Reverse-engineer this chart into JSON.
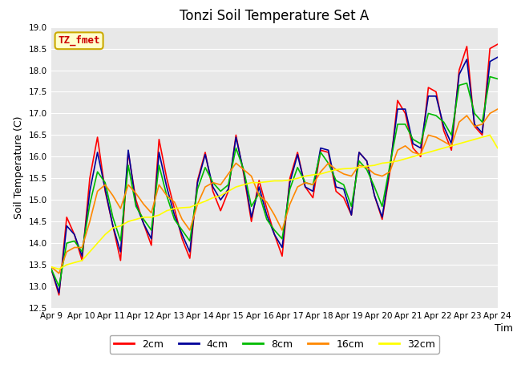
{
  "title": "Tonzi Soil Temperature Set A",
  "ylabel": "Soil Temperature (C)",
  "xlabel": "Time",
  "ylim": [
    12.5,
    19.0
  ],
  "yticks": [
    12.5,
    13.0,
    13.5,
    14.0,
    14.5,
    15.0,
    15.5,
    16.0,
    16.5,
    17.0,
    17.5,
    18.0,
    18.5,
    19.0
  ],
  "xtick_labels": [
    "Apr 9",
    "Apr 10",
    "Apr 11",
    "Apr 12",
    "Apr 13",
    "Apr 14",
    "Apr 15",
    "Apr 16",
    "Apr 17",
    "Apr 18",
    "Apr 19",
    "Apr 20",
    "Apr 21",
    "Apr 22",
    "Apr 23",
    "Apr 24"
  ],
  "legend_label": "TZ_fmet",
  "series_keys": [
    "2cm",
    "4cm",
    "8cm",
    "16cm",
    "32cm"
  ],
  "series_colors": [
    "#ff0000",
    "#000099",
    "#00bb00",
    "#ff8800",
    "#ffff00"
  ],
  "series_labels": [
    "2cm",
    "4cm",
    "8cm",
    "16cm",
    "32cm"
  ],
  "series_2cm": [
    13.4,
    12.8,
    14.6,
    14.2,
    13.6,
    15.5,
    16.45,
    15.2,
    14.4,
    13.6,
    16.1,
    15.0,
    14.45,
    13.95,
    16.4,
    15.5,
    14.8,
    14.1,
    13.65,
    15.45,
    16.1,
    15.2,
    14.75,
    15.2,
    16.5,
    15.6,
    14.5,
    15.45,
    14.8,
    14.2,
    13.7,
    15.5,
    16.1,
    15.3,
    15.05,
    16.15,
    16.1,
    15.2,
    15.05,
    14.65,
    16.1,
    15.9,
    15.1,
    14.55,
    15.65,
    17.3,
    17.0,
    16.2,
    16.0,
    17.6,
    17.5,
    16.6,
    16.15,
    18.0,
    18.55,
    16.7,
    16.5,
    18.5,
    18.6
  ],
  "series_4cm": [
    13.4,
    12.85,
    14.4,
    14.2,
    13.7,
    15.2,
    16.1,
    15.25,
    14.4,
    13.8,
    16.15,
    14.9,
    14.45,
    14.1,
    16.1,
    15.3,
    14.65,
    14.2,
    13.8,
    15.4,
    16.05,
    15.3,
    15.0,
    15.25,
    16.45,
    15.65,
    14.6,
    15.3,
    14.65,
    14.2,
    13.9,
    15.4,
    16.05,
    15.3,
    15.2,
    16.2,
    16.15,
    15.3,
    15.25,
    14.65,
    16.1,
    15.9,
    15.1,
    14.6,
    15.75,
    17.1,
    17.1,
    16.3,
    16.2,
    17.4,
    17.4,
    16.7,
    16.3,
    17.9,
    18.25,
    16.75,
    16.55,
    18.2,
    18.3
  ],
  "series_8cm": [
    13.4,
    13.0,
    14.0,
    14.05,
    13.8,
    14.9,
    15.65,
    15.4,
    14.6,
    14.05,
    15.8,
    14.85,
    14.55,
    14.3,
    15.8,
    15.1,
    14.55,
    14.3,
    14.05,
    15.25,
    15.75,
    15.4,
    15.2,
    15.35,
    16.2,
    15.7,
    14.85,
    15.15,
    14.55,
    14.3,
    14.1,
    15.25,
    15.75,
    15.4,
    15.35,
    16.1,
    15.85,
    15.45,
    15.35,
    14.85,
    15.9,
    15.7,
    15.3,
    14.85,
    15.8,
    16.75,
    16.75,
    16.4,
    16.3,
    17.0,
    16.95,
    16.8,
    16.5,
    17.65,
    17.7,
    17.0,
    16.8,
    17.85,
    17.8
  ],
  "series_16cm": [
    13.45,
    13.3,
    13.8,
    13.9,
    13.9,
    14.5,
    15.2,
    15.35,
    15.1,
    14.8,
    15.35,
    15.15,
    14.9,
    14.7,
    15.35,
    15.1,
    14.95,
    14.55,
    14.3,
    14.9,
    15.3,
    15.4,
    15.35,
    15.6,
    15.85,
    15.7,
    15.55,
    15.1,
    14.95,
    14.65,
    14.3,
    14.9,
    15.3,
    15.4,
    15.35,
    15.65,
    15.85,
    15.7,
    15.6,
    15.55,
    15.8,
    15.75,
    15.6,
    15.55,
    15.65,
    16.15,
    16.25,
    16.1,
    16.05,
    16.5,
    16.45,
    16.35,
    16.25,
    16.8,
    16.95,
    16.7,
    16.75,
    17.0,
    17.1
  ],
  "series_32cm": [
    13.45,
    13.4,
    13.5,
    13.55,
    13.6,
    13.8,
    14.0,
    14.2,
    14.35,
    14.4,
    14.5,
    14.55,
    14.6,
    14.6,
    14.65,
    14.75,
    14.8,
    14.82,
    14.83,
    14.9,
    14.97,
    15.05,
    15.1,
    15.2,
    15.3,
    15.35,
    15.4,
    15.4,
    15.42,
    15.44,
    15.44,
    15.46,
    15.5,
    15.55,
    15.58,
    15.6,
    15.65,
    15.7,
    15.72,
    15.73,
    15.75,
    15.78,
    15.8,
    15.85,
    15.87,
    15.9,
    15.95,
    16.0,
    16.05,
    16.1,
    16.15,
    16.2,
    16.25,
    16.3,
    16.35,
    16.4,
    16.45,
    16.5,
    16.2
  ],
  "plot_bg": "#e8e8e8",
  "fig_bg": "#ffffff",
  "grid_color": "#ffffff",
  "legend_box_bg": "#ffffcc",
  "legend_box_edge": "#ccaa00",
  "legend_text_color": "#cc0000",
  "linewidth": 1.2,
  "title_fontsize": 12,
  "axis_fontsize": 9,
  "tick_fontsize": 7.5
}
